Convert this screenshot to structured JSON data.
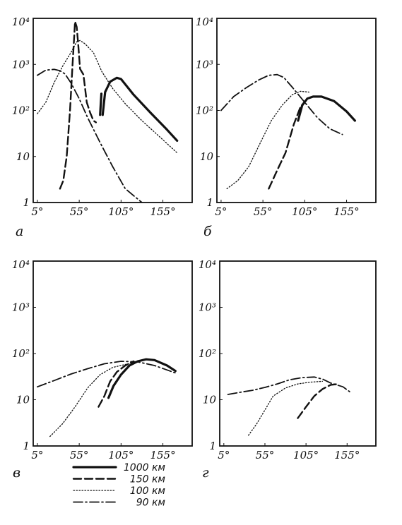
{
  "styles": {
    "1000 км": {
      "width": 3.2,
      "dash": ""
    },
    "150 км": {
      "width": 2.4,
      "dash": "11 5"
    },
    "100 км": {
      "width": 1.3,
      "dash": "1.5 2.5"
    },
    "90 км": {
      "width": 1.8,
      "dash": "13 4 2 4"
    }
  },
  "chart_data": [
    {
      "type": "line",
      "panel_label": "а",
      "xlabel": "",
      "ylabel": "",
      "x_ticks": [
        "5°",
        "55°",
        "105°",
        "155°"
      ],
      "y_ticks": [
        "1",
        "10",
        "10²",
        "10³",
        "10⁴"
      ],
      "xlim": [
        0,
        190
      ],
      "ylim": [
        1,
        10000
      ],
      "yscale": "log",
      "series": [
        {
          "name": "1000 км",
          "x": [
            83,
            86,
            92,
            100,
            105,
            120,
            140,
            160,
            172
          ],
          "y": [
            80,
            250,
            420,
            510,
            480,
            220,
            90,
            38,
            22
          ]
        },
        {
          "name": "1000 км",
          "x": [
            80,
            81.5
          ],
          "y": [
            80,
            230
          ]
        },
        {
          "name": "150 км",
          "x": [
            32,
            36,
            40,
            44,
            47,
            49,
            50,
            52,
            54,
            56,
            60,
            64,
            68,
            72,
            75
          ],
          "y": [
            2,
            3,
            10,
            100,
            1000,
            4000,
            8500,
            6500,
            2500,
            800,
            600,
            150,
            90,
            60,
            55
          ]
        },
        {
          "name": "100 км",
          "x": [
            5,
            15,
            25,
            35,
            45,
            52,
            56,
            62,
            72,
            82,
            95,
            110,
            130,
            150,
            172
          ],
          "y": [
            85,
            150,
            400,
            900,
            1800,
            3100,
            3300,
            2800,
            1800,
            700,
            300,
            140,
            60,
            28,
            12
          ]
        },
        {
          "name": "90 км",
          "x": [
            5,
            15,
            25,
            32,
            38,
            45,
            55,
            65,
            80,
            95,
            110,
            130,
            145
          ],
          "y": [
            580,
            750,
            780,
            730,
            620,
            400,
            180,
            70,
            20,
            6,
            2,
            1,
            0.7
          ]
        }
      ]
    },
    {
      "type": "line",
      "panel_label": "б",
      "xlabel": "",
      "ylabel": "",
      "x_ticks": [
        "5°",
        "55°",
        "105°",
        "155°"
      ],
      "y_ticks": [
        "1",
        "10",
        "10²",
        "10³",
        "10⁴"
      ],
      "xlim": [
        0,
        190
      ],
      "ylim": [
        1,
        10000
      ],
      "yscale": "log",
      "series": [
        {
          "name": "1000 км",
          "x": [
            97,
            102,
            108,
            115,
            125,
            140,
            155,
            165
          ],
          "y": [
            60,
            130,
            180,
            200,
            200,
            160,
            95,
            60
          ]
        },
        {
          "name": "150 км",
          "x": [
            62,
            72,
            82,
            92,
            100,
            108,
            115
          ],
          "y": [
            2,
            5,
            12,
            50,
            120,
            180,
            200
          ]
        },
        {
          "name": "100 км",
          "x": [
            12,
            25,
            38,
            52,
            65,
            78,
            90,
            100,
            110
          ],
          "y": [
            2,
            3,
            6,
            20,
            60,
            130,
            220,
            260,
            250
          ]
        },
        {
          "name": "90 км",
          "x": [
            5,
            20,
            35,
            50,
            62,
            72,
            80,
            90,
            105,
            120,
            135,
            150
          ],
          "y": [
            100,
            200,
            310,
            460,
            580,
            600,
            520,
            320,
            150,
            70,
            40,
            30
          ]
        }
      ]
    },
    {
      "type": "line",
      "panel_label": "в",
      "xlabel": "",
      "ylabel": "",
      "x_ticks": [
        "5°",
        "55°",
        "105°",
        "155°"
      ],
      "y_ticks": [
        "1",
        "10",
        "10²",
        "10³",
        "10⁴"
      ],
      "xlim": [
        0,
        190
      ],
      "ylim": [
        1,
        10000
      ],
      "yscale": "log",
      "series": [
        {
          "name": "1000 км",
          "x": [
            90,
            96,
            105,
            115,
            125,
            135,
            145,
            160,
            170
          ],
          "y": [
            11,
            20,
            35,
            55,
            68,
            75,
            72,
            55,
            42
          ]
        },
        {
          "name": "150 км",
          "x": [
            78,
            85,
            92,
            100,
            110,
            120
          ],
          "y": [
            7,
            12,
            25,
            40,
            55,
            68
          ]
        },
        {
          "name": "100 км",
          "x": [
            20,
            35,
            50,
            65,
            80,
            95,
            110,
            125
          ],
          "y": [
            1.6,
            3,
            7,
            18,
            35,
            50,
            58,
            65
          ]
        },
        {
          "name": "90 км",
          "x": [
            5,
            25,
            45,
            65,
            85,
            105,
            125,
            145,
            170
          ],
          "y": [
            19,
            26,
            36,
            47,
            60,
            68,
            66,
            55,
            38
          ]
        }
      ]
    },
    {
      "type": "line",
      "panel_label": "г",
      "xlabel": "",
      "ylabel": "",
      "x_ticks": [
        "5°",
        "55°",
        "105°",
        "155°"
      ],
      "y_ticks": [
        "1",
        "10",
        "10²",
        "10³",
        "10⁴"
      ],
      "xlim": [
        0,
        190
      ],
      "ylim": [
        1,
        10000
      ],
      "yscale": "log",
      "series": [
        {
          "name": "150 км",
          "x": [
            95,
            105,
            115,
            125,
            135,
            145
          ],
          "y": [
            4,
            7,
            12,
            17,
            21,
            22
          ]
        },
        {
          "name": "100 км",
          "x": [
            35,
            45,
            55,
            65,
            80,
            95,
            110,
            125
          ],
          "y": [
            1.7,
            3,
            6,
            12,
            18,
            22,
            24,
            25
          ]
        },
        {
          "name": "90 км",
          "x": [
            10,
            25,
            40,
            55,
            70,
            85,
            100,
            115,
            125,
            135,
            150,
            158
          ],
          "y": [
            13,
            14.5,
            16,
            18.5,
            22,
            27,
            30,
            31,
            28,
            23,
            19,
            15
          ]
        }
      ]
    }
  ],
  "legend": [
    {
      "name": "1000 км",
      "label": "1000 км"
    },
    {
      "name": "150 км",
      "label": "150 км"
    },
    {
      "name": "100 км",
      "label": "100 км"
    },
    {
      "name": "90 км",
      "label": "90 км"
    }
  ]
}
